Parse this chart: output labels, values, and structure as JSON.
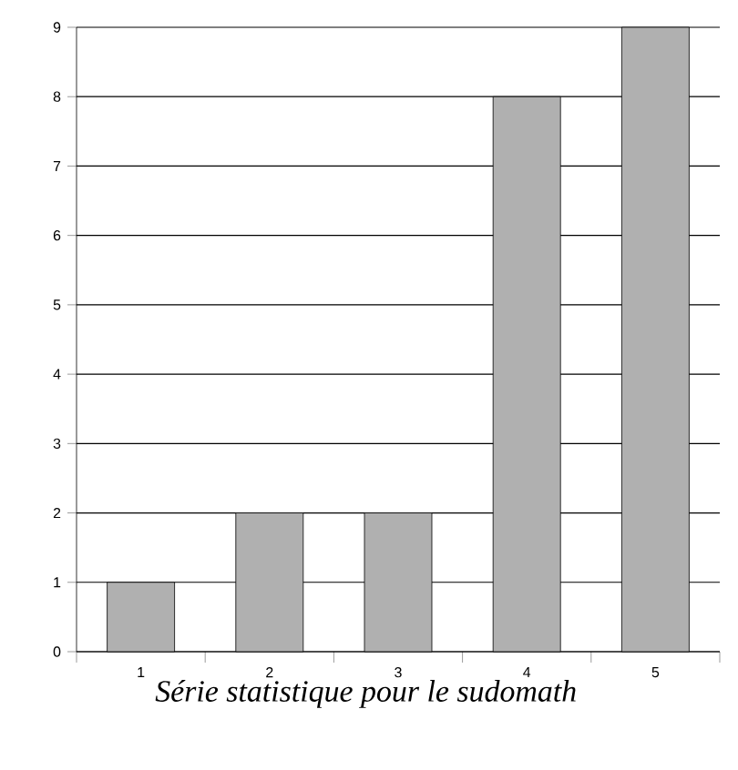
{
  "chart_data": {
    "type": "bar",
    "title": "Série statistique pour le sudomath",
    "categories": [
      "1",
      "2",
      "3",
      "4",
      "5"
    ],
    "values": [
      1,
      2,
      2,
      8,
      9
    ],
    "color": "#b0b0b0",
    "ylim": [
      0,
      9
    ],
    "yticks": [
      0,
      1,
      2,
      3,
      4,
      5,
      6,
      7,
      8,
      9
    ],
    "grid": "y"
  }
}
